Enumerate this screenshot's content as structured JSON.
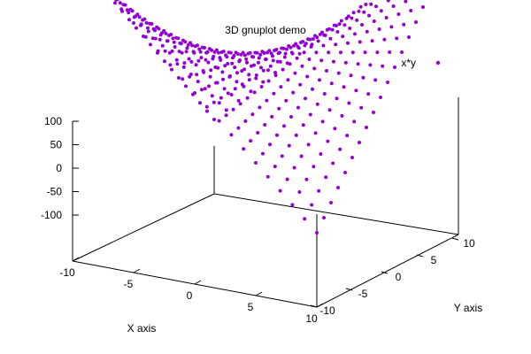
{
  "chart_data": {
    "type": "scatter",
    "title": "3D gnuplot demo",
    "xlabel": "X axis",
    "ylabel": "Y axis",
    "zlabel": "",
    "xlim": [
      -10,
      10
    ],
    "ylim": [
      -10,
      10
    ],
    "zlim": [
      -100,
      100
    ],
    "x_ticks": [
      "-10",
      "-5",
      "0",
      "5",
      "10"
    ],
    "y_ticks": [
      "-10",
      "-5",
      "0",
      "5",
      "10"
    ],
    "z_ticks": [
      "100",
      "50",
      "0",
      "-50",
      "-100"
    ],
    "legend_position": "top-right",
    "grid": false,
    "series": [
      {
        "name": "x*y",
        "function": "z = x*y",
        "x_start": -10,
        "x_step": 1,
        "x_end": 10,
        "y_start": -10,
        "y_step": 1,
        "y_end": 10,
        "color": "#9400D3"
      }
    ]
  }
}
